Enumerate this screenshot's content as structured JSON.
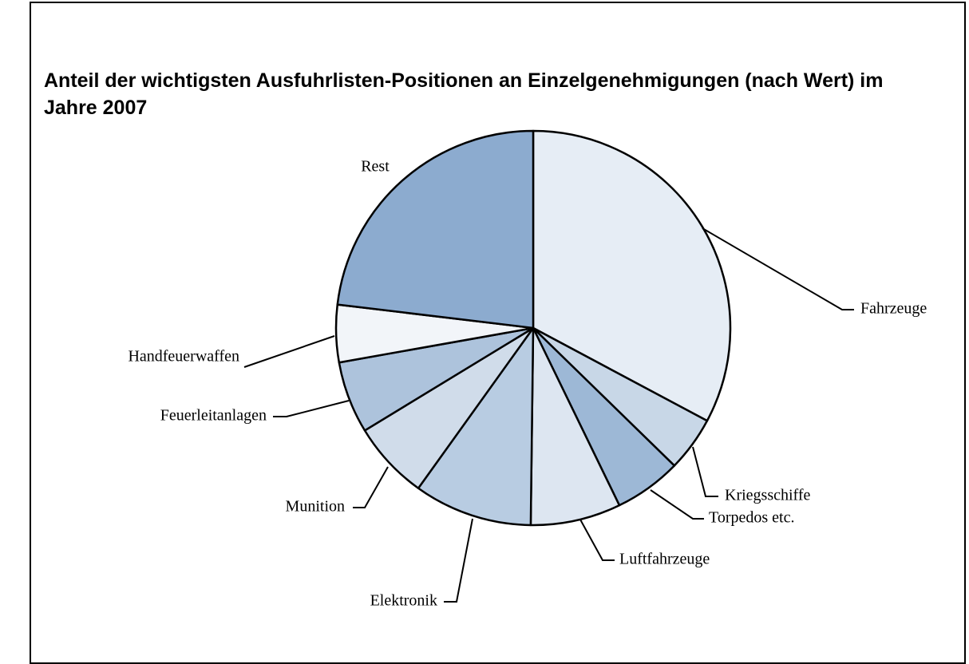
{
  "chart_data": {
    "type": "pie",
    "title": "Anteil der wichtigsten Ausfuhrlisten-Positionen an Einzelgenehmigungen (nach Wert) im Jahre 2007",
    "categories": [
      "Fahrzeuge",
      "Kriegsschiffe",
      "Torpedos etc.",
      "Luftfahrzeuge",
      "Elektronik",
      "Munition",
      "Feuerleitanlagen",
      "Handfeuerwaffen",
      "Rest"
    ],
    "values": [
      32.8,
      4.5,
      5.5,
      7.4,
      9.7,
      6.4,
      5.9,
      4.7,
      23.1
    ],
    "colors": [
      "#e6edf5",
      "#c8d7e7",
      "#9db8d6",
      "#dde6f1",
      "#b8cce2",
      "#d0dcea",
      "#adc3dc",
      "#f2f5f9",
      "#8cabcf"
    ]
  }
}
